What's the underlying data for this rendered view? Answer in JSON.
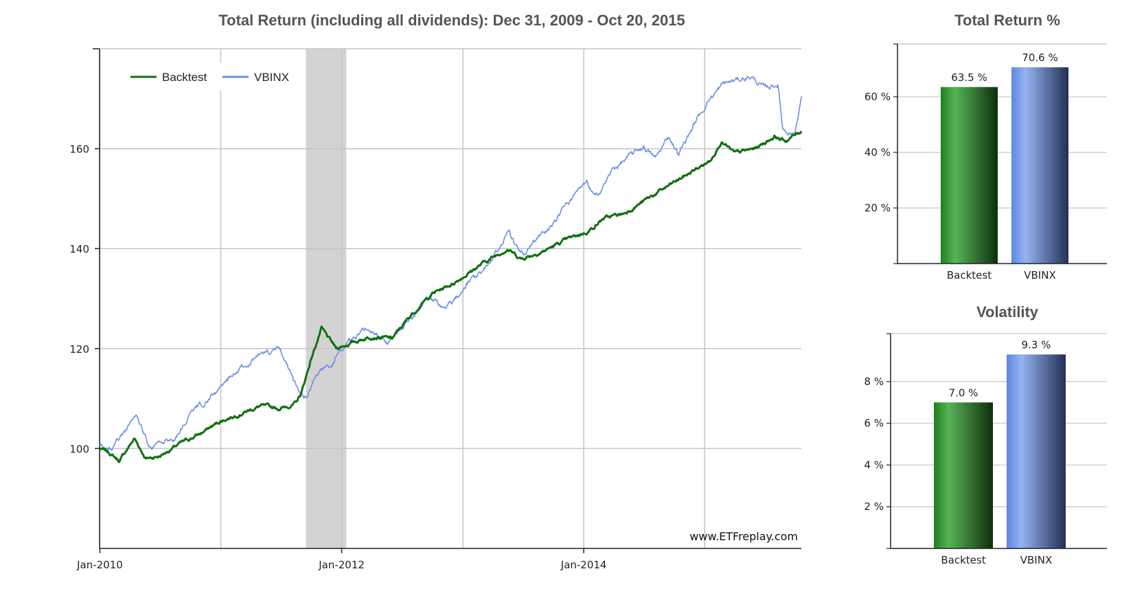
{
  "watermark": "www.ETFreplay.com",
  "colors": {
    "backtest": "#117011",
    "vbinx": "#6a8fe6",
    "grid": "#c4c4c4",
    "recession": "#d3d3d3"
  },
  "chart_data": [
    {
      "type": "line",
      "title": "Total Return (including all dividends): Dec 31, 2009 - Oct 20, 2015",
      "x_ticks": [
        "Jan-2010",
        "Jan-2012",
        "Jan-2014"
      ],
      "y_ticks": [
        100,
        120,
        140,
        160
      ],
      "xlim": [
        "2009-12-31",
        "2015-10-20"
      ],
      "ylim": [
        80,
        180
      ],
      "grid": true,
      "legend_placement": "top-left",
      "shaded_region": [
        "2011-09-15",
        "2012-01-15"
      ],
      "series": [
        {
          "name": "Backtest",
          "color": "#117011",
          "points": [
            [
              "2009-12-31",
              100
            ],
            [
              "2010-02-01",
              99
            ],
            [
              "2010-03-01",
              97.5
            ],
            [
              "2010-04-15",
              102
            ],
            [
              "2010-05-20",
              98
            ],
            [
              "2010-07-01",
              98.5
            ],
            [
              "2010-09-01",
              101
            ],
            [
              "2010-11-01",
              103
            ],
            [
              "2011-01-01",
              105.5
            ],
            [
              "2011-03-01",
              107
            ],
            [
              "2011-05-01",
              108.5
            ],
            [
              "2011-07-01",
              108
            ],
            [
              "2011-08-15",
              109
            ],
            [
              "2011-09-01",
              111
            ],
            [
              "2011-10-01",
              118
            ],
            [
              "2011-11-01",
              124
            ],
            [
              "2011-12-15",
              120
            ],
            [
              "2012-02-15",
              121.5
            ],
            [
              "2012-04-01",
              122.5
            ],
            [
              "2012-06-01",
              122
            ],
            [
              "2012-08-01",
              127
            ],
            [
              "2012-10-01",
              131
            ],
            [
              "2012-12-01",
              133
            ],
            [
              "2013-03-01",
              137
            ],
            [
              "2013-05-15",
              140
            ],
            [
              "2013-06-25",
              138
            ],
            [
              "2013-09-01",
              139.5
            ],
            [
              "2013-11-01",
              141.5
            ],
            [
              "2014-01-15",
              143.5
            ],
            [
              "2014-03-01",
              146
            ],
            [
              "2014-05-01",
              147
            ],
            [
              "2014-07-01",
              149.5
            ],
            [
              "2014-09-01",
              152
            ],
            [
              "2014-11-01",
              154.5
            ],
            [
              "2015-01-15",
              157.5
            ],
            [
              "2015-02-20",
              161.5
            ],
            [
              "2015-04-01",
              159
            ],
            [
              "2015-06-01",
              160
            ],
            [
              "2015-08-01",
              162.5
            ],
            [
              "2015-09-01",
              161.5
            ],
            [
              "2015-10-20",
              163.5
            ]
          ]
        },
        {
          "name": "VBINX",
          "color": "#6a8fe6",
          "points": [
            [
              "2009-12-31",
              101
            ],
            [
              "2010-01-25",
              99.5
            ],
            [
              "2010-03-01",
              102
            ],
            [
              "2010-04-20",
              107
            ],
            [
              "2010-06-01",
              100
            ],
            [
              "2010-07-01",
              101
            ],
            [
              "2010-08-15",
              102
            ],
            [
              "2010-10-01",
              107
            ],
            [
              "2011-01-01",
              112
            ],
            [
              "2011-03-01",
              116
            ],
            [
              "2011-05-01",
              119
            ],
            [
              "2011-07-01",
              119.5
            ],
            [
              "2011-08-10",
              113
            ],
            [
              "2011-09-15",
              110
            ],
            [
              "2011-10-15",
              115
            ],
            [
              "2011-12-01",
              117
            ],
            [
              "2012-01-15",
              121
            ],
            [
              "2012-03-15",
              124.5
            ],
            [
              "2012-05-15",
              121
            ],
            [
              "2012-07-01",
              124
            ],
            [
              "2012-09-15",
              130
            ],
            [
              "2012-11-15",
              128
            ],
            [
              "2013-01-15",
              133
            ],
            [
              "2013-03-15",
              137
            ],
            [
              "2013-05-20",
              143
            ],
            [
              "2013-06-25",
              138.5
            ],
            [
              "2013-09-01",
              143
            ],
            [
              "2013-11-01",
              148
            ],
            [
              "2014-01-10",
              153
            ],
            [
              "2014-02-05",
              150
            ],
            [
              "2014-04-01",
              156
            ],
            [
              "2014-07-01",
              160.5
            ],
            [
              "2014-08-05",
              158
            ],
            [
              "2014-09-15",
              162.5
            ],
            [
              "2014-10-15",
              159
            ],
            [
              "2014-12-01",
              165
            ],
            [
              "2015-01-15",
              170
            ],
            [
              "2015-03-01",
              173
            ],
            [
              "2015-05-20",
              174.5
            ],
            [
              "2015-07-01",
              172
            ],
            [
              "2015-08-10",
              173
            ],
            [
              "2015-08-25",
              164
            ],
            [
              "2015-09-30",
              163
            ],
            [
              "2015-10-20",
              170.5
            ]
          ]
        }
      ]
    },
    {
      "type": "bar",
      "title": "Total Return %",
      "categories": [
        "Backtest",
        "VBINX"
      ],
      "values": [
        63.5,
        70.6
      ],
      "value_labels": [
        "63.5 %",
        "70.6 %"
      ],
      "y_ticks": [
        "20 %",
        "40 %",
        "60 %"
      ],
      "y_tick_values": [
        20,
        40,
        60
      ],
      "ylim": [
        0,
        79
      ],
      "grid": true
    },
    {
      "type": "bar",
      "title": "Volatility",
      "categories": [
        "Backtest",
        "VBINX"
      ],
      "values": [
        7.0,
        9.3
      ],
      "value_labels": [
        "7.0 %",
        "9.3 %"
      ],
      "y_ticks": [
        "2 %",
        "4 %",
        "6 %",
        "8 %"
      ],
      "y_tick_values": [
        2,
        4,
        6,
        8
      ],
      "ylim": [
        0,
        10.3
      ],
      "grid": true
    }
  ]
}
